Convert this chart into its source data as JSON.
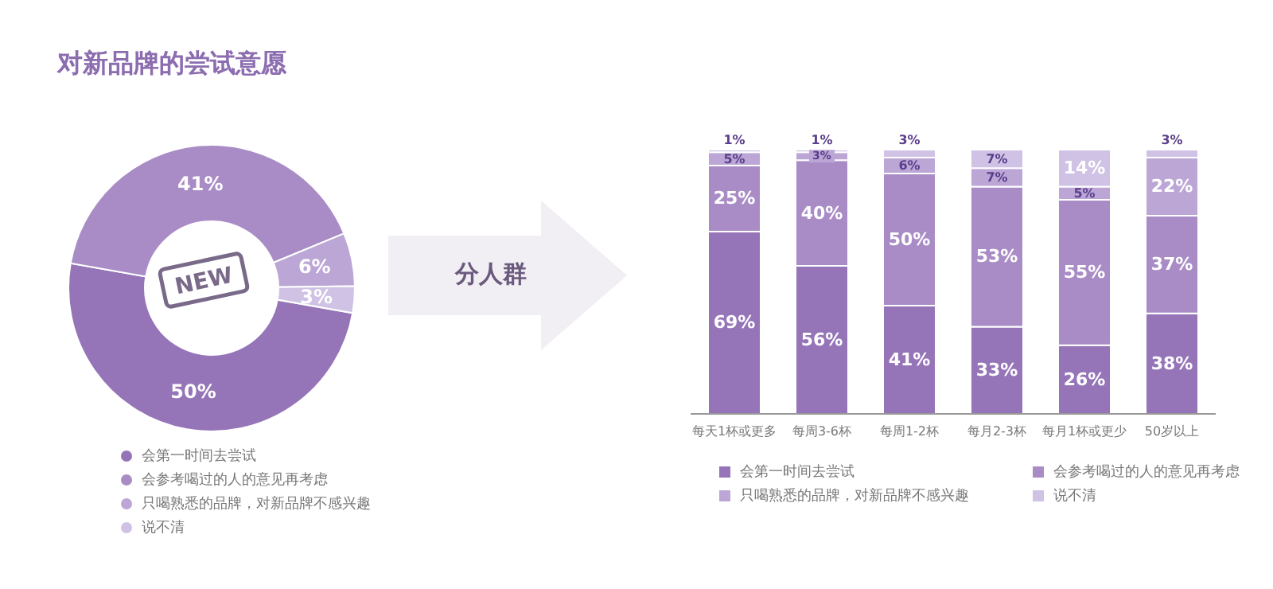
{
  "chart_data": [
    {
      "type": "donut",
      "title": "对新品牌的尝试意愿",
      "categories": [
        "会第一时间去尝试",
        "会参考喝过的人的意见再考虑",
        "只喝熟悉的品牌，对新品牌不感兴趣",
        "说不清"
      ],
      "values": [
        50,
        41,
        6,
        3
      ],
      "colors": [
        "#9575b8",
        "#a98cc6",
        "#bba6d6",
        "#cfc2e4"
      ],
      "value_labels": [
        "50%",
        "41%",
        "6%",
        "3%"
      ],
      "legend": "bottom",
      "annotations": [
        "NEW"
      ]
    },
    {
      "type": "bar",
      "stacked": true,
      "categories": [
        "每天1杯或更多",
        "每周3-6杯",
        "每周1-2杯",
        "每月2-3杯",
        "每月1杯或更少",
        "50岁以上"
      ],
      "legend": "bottom",
      "annotations": [
        "分人群"
      ],
      "series": [
        {
          "name": "会第一时间去尝试",
          "color": "#9575b8",
          "values": [
            69,
            56,
            41,
            33,
            26,
            38
          ],
          "value_labels": [
            "69%",
            "56%",
            "41%",
            "33%",
            "26%",
            "38%"
          ]
        },
        {
          "name": "会参考喝过的人的意见再考虑",
          "color": "#a98cc6",
          "values": [
            25,
            40,
            50,
            53,
            55,
            37
          ],
          "value_labels": [
            "25%",
            "40%",
            "50%",
            "53%",
            "55%",
            "37%"
          ]
        },
        {
          "name": "只喝熟悉的品牌，对新品牌不感兴趣",
          "color": "#bba6d6",
          "values": [
            5,
            3,
            6,
            7,
            5,
            22
          ],
          "value_labels": [
            "5%",
            "3%",
            "6%",
            "7%",
            "5%",
            "22%"
          ]
        },
        {
          "name": "说不清",
          "color": "#cfc2e4",
          "values": [
            1,
            1,
            3,
            7,
            14,
            3
          ],
          "value_labels": [
            "1%",
            "1%",
            "3%",
            "7%",
            "14%",
            "3%"
          ]
        }
      ]
    }
  ]
}
